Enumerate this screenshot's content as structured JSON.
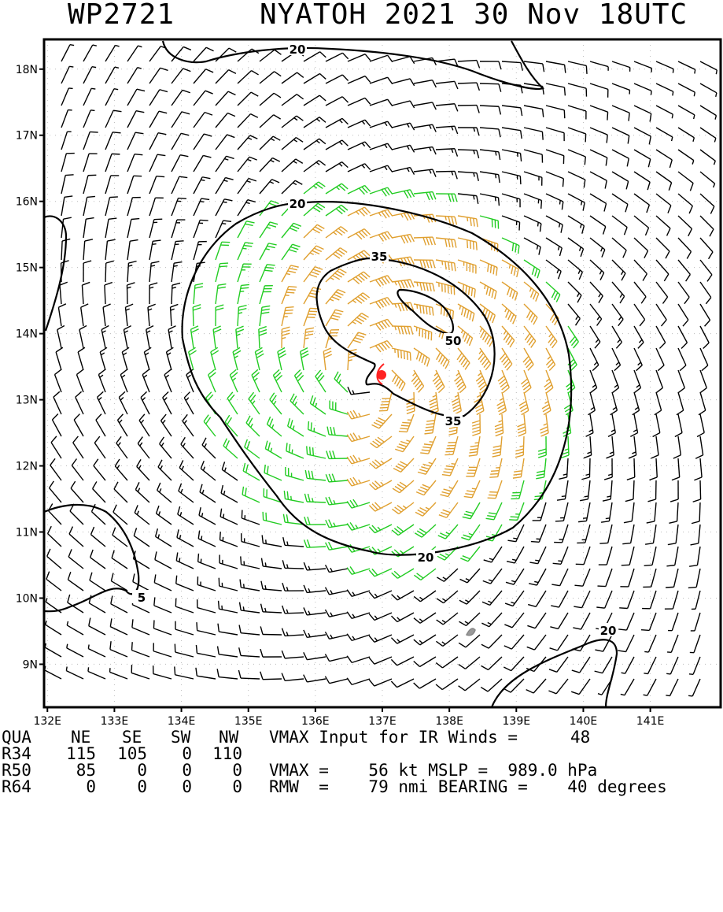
{
  "title": {
    "storm_id": "WP2721",
    "name_date": "NYATOH 2021 30 Nov 18UTC"
  },
  "map": {
    "lon_labels": [
      "132E",
      "133E",
      "134E",
      "135E",
      "136E",
      "137E",
      "138E",
      "139E",
      "140E",
      "141E"
    ],
    "lat_labels": [
      "18N",
      "17N",
      "16N",
      "15N",
      "14N",
      "13N",
      "12N",
      "11N",
      "10N",
      "9N"
    ],
    "lon_range": [
      131.95,
      142.05
    ],
    "lat_range": [
      8.35,
      18.45
    ],
    "storm_center": {
      "lon": 136.85,
      "lat": 13.3
    },
    "contour_labels": [
      "20",
      "20",
      "35",
      "50",
      "35",
      "20",
      "20",
      "5"
    ],
    "colors": {
      "calm": "#000000",
      "gale": "#22cc22",
      "storm": "#e0a030",
      "center": "#ff2222"
    }
  },
  "info": {
    "header": {
      "qua": "QUA",
      "ne": "NE",
      "se": "SE",
      "sw": "SW",
      "nw": "NW",
      "vmax_input_label": "VMAX Input for IR Winds =",
      "vmax_input_value": "48"
    },
    "r34": {
      "label": "R34",
      "ne": "115",
      "se": "105",
      "sw": "0",
      "nw": "110"
    },
    "r50": {
      "label": "R50",
      "ne": "85",
      "se": "0",
      "sw": "0",
      "nw": "0",
      "text": "VMAX =    56 kt MSLP =  989.0 hPa"
    },
    "r64": {
      "label": "R64",
      "ne": "0",
      "se": "0",
      "sw": "0",
      "nw": "0",
      "text": "RMW  =    79 nmi BEARING =    40 degrees"
    }
  }
}
